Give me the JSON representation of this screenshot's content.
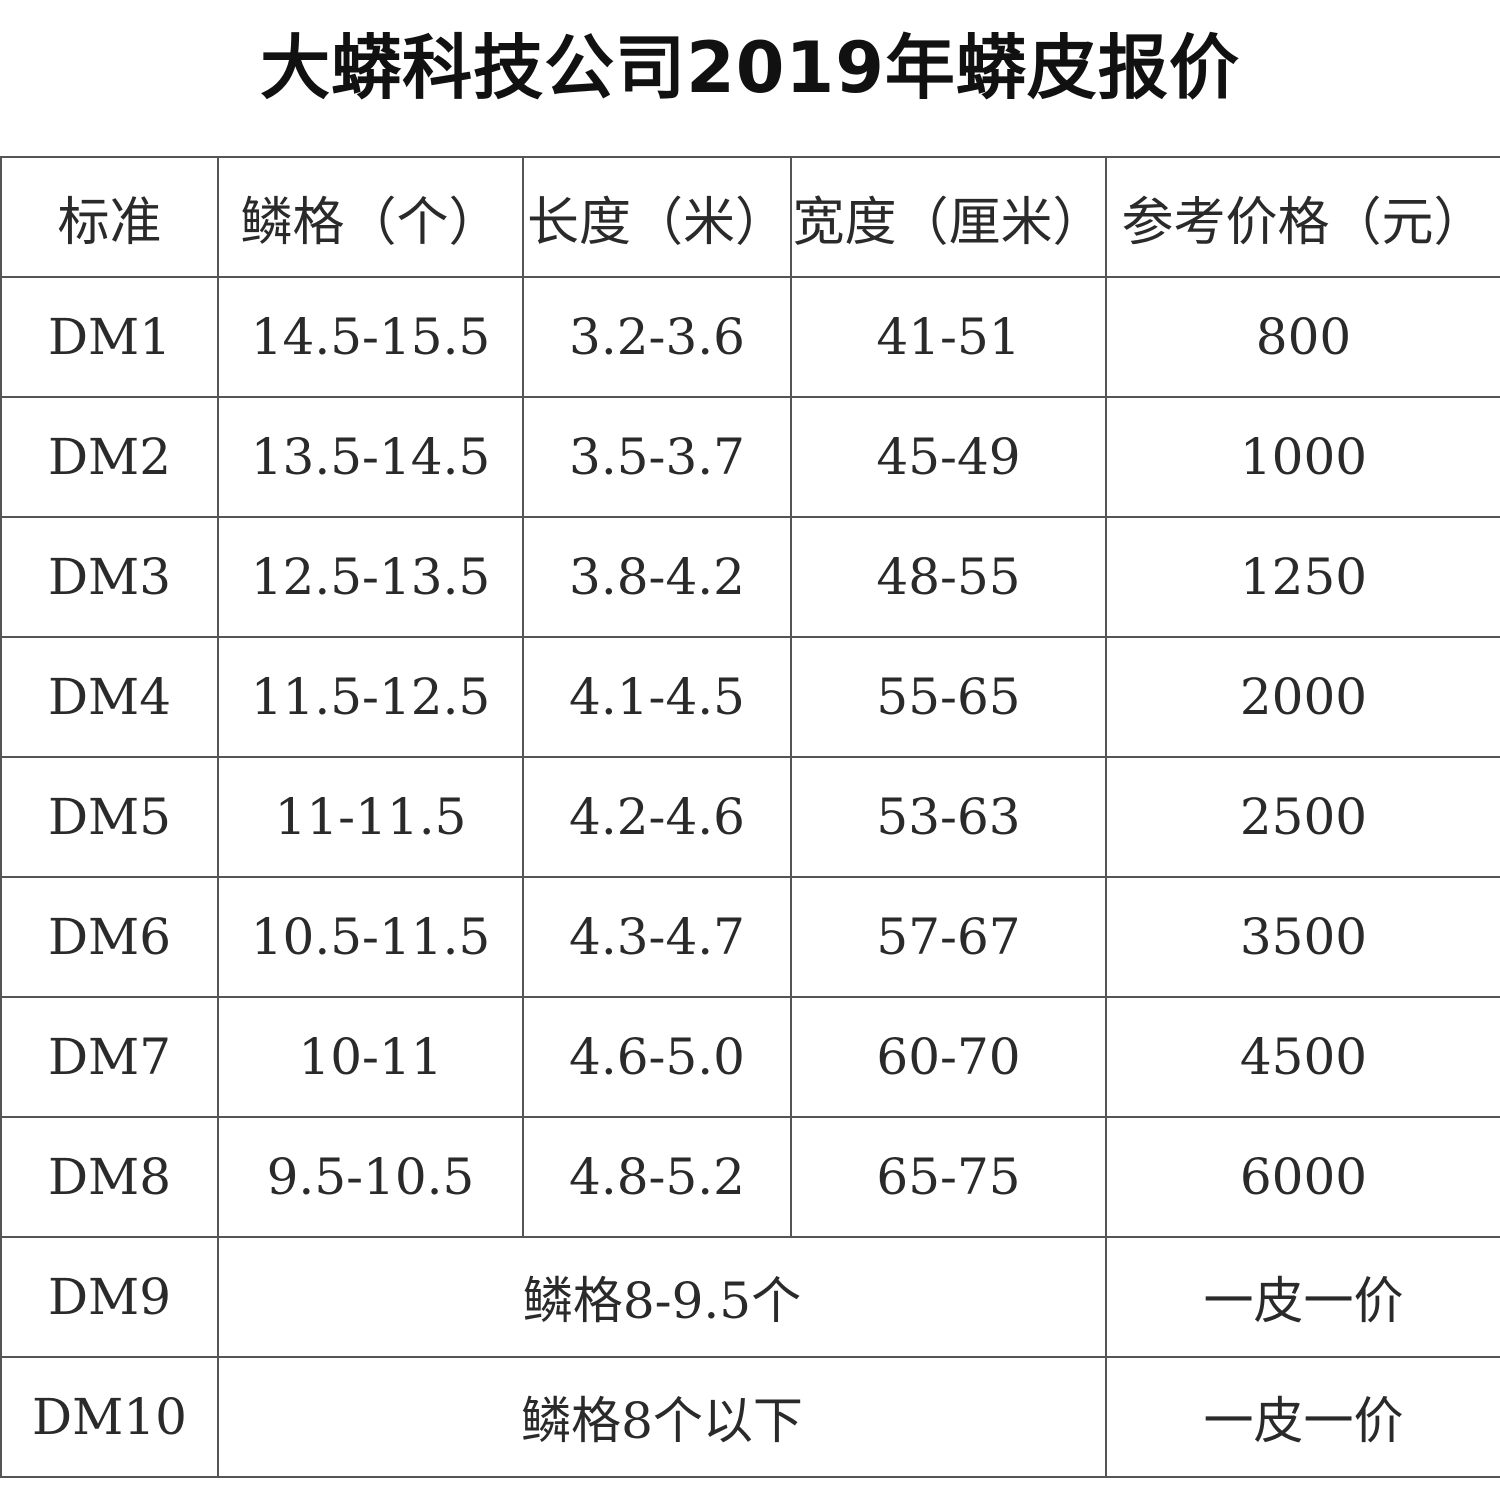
{
  "title": "大蟒科技公司2019年蟒皮报价",
  "headers": [
    "标准",
    "鳞格（个）",
    "长度（米）",
    "宽度（厘米）",
    "参考价格（元）"
  ],
  "rows": [
    [
      "DM1",
      "14.5-15.5",
      "3.2-3.6",
      "41-51",
      "800"
    ],
    [
      "DM2",
      "13.5-14.5",
      "3.5-3.7",
      "45-49",
      "1000"
    ],
    [
      "DM3",
      "12.5-13.5",
      "3.8-4.2",
      "48-55",
      "1250"
    ],
    [
      "DM4",
      "11.5-12.5",
      "4.1-4.5",
      "55-65",
      "2000"
    ],
    [
      "DM5",
      "11-11.5",
      "4.2-4.6",
      "53-63",
      "2500"
    ],
    [
      "DM6",
      "10.5-11.5",
      "4.3-4.7",
      "57-67",
      "3500"
    ],
    [
      "DM7",
      "10-11",
      "4.6-5.0",
      "60-70",
      "4500"
    ],
    [
      "DM8",
      "9.5-10.5",
      "4.8-5.2",
      "65-75",
      "6000"
    ]
  ],
  "merged_rows": [
    [
      "DM9",
      "鳞格8-9.5个",
      "一皮一价"
    ],
    [
      "DM10",
      "鳞格8个以下",
      "一皮一价"
    ]
  ]
}
